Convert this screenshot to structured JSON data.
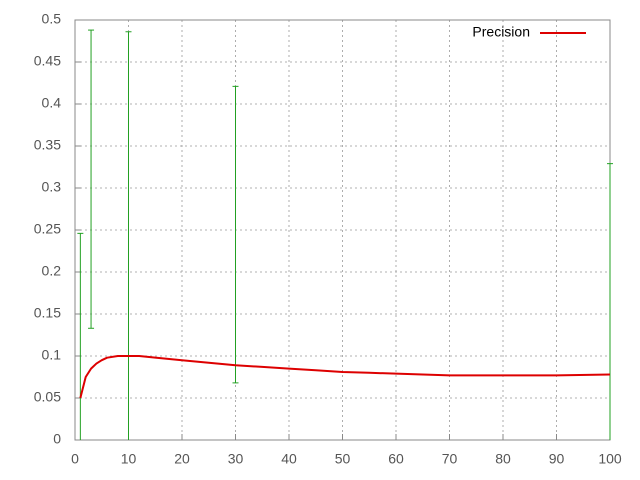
{
  "chart_data": {
    "type": "line",
    "x": [
      1,
      2,
      3,
      4,
      5,
      6,
      8,
      10,
      12,
      15,
      20,
      25,
      30,
      35,
      40,
      45,
      50,
      55,
      60,
      70,
      80,
      90,
      100
    ],
    "series": [
      {
        "name": "Precision",
        "color": "#dd0000",
        "values": [
          0.05,
          0.075,
          0.085,
          0.091,
          0.095,
          0.098,
          0.1,
          0.1,
          0.1,
          0.098,
          0.095,
          0.092,
          0.089,
          0.087,
          0.085,
          0.083,
          0.081,
          0.08,
          0.079,
          0.077,
          0.077,
          0.077,
          0.078
        ]
      }
    ],
    "error_bars": {
      "color": "#22a022",
      "x": [
        1,
        3,
        10,
        30,
        100
      ],
      "low": [
        null,
        0.133,
        null,
        0.068,
        null
      ],
      "high": [
        0.246,
        0.488,
        0.486,
        0.421,
        0.329
      ]
    },
    "xlim": [
      0,
      100
    ],
    "ylim": [
      0,
      0.5
    ],
    "xticks": [
      0,
      10,
      20,
      30,
      40,
      50,
      60,
      70,
      80,
      90,
      100
    ],
    "yticks": [
      0,
      0.05,
      0.1,
      0.15,
      0.2,
      0.25,
      0.3,
      0.35,
      0.4,
      0.45,
      0.5
    ],
    "grid": true,
    "legend": "top-right"
  }
}
